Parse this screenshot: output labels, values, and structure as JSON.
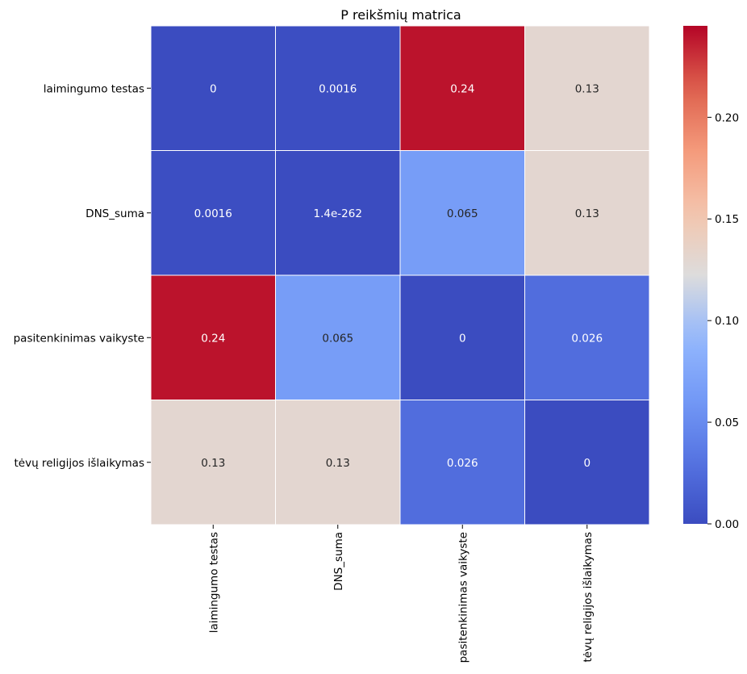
{
  "chart_data": {
    "type": "heatmap",
    "title": "P reikšmių matrica",
    "xlabel": "",
    "ylabel": "",
    "x_categories": [
      "laimingumo testas",
      "DNS_suma",
      "pasitenkinimas vaikyste",
      "tėvų religijos išlaikymas"
    ],
    "y_categories": [
      "laimingumo testas",
      "DNS_suma",
      "pasitenkinimas vaikyste",
      "tėvų religijos išlaikymas"
    ],
    "values": [
      [
        0,
        0.0016,
        0.24,
        0.13
      ],
      [
        0.0016,
        1.4e-262,
        0.065,
        0.13
      ],
      [
        0.24,
        0.065,
        0,
        0.026
      ],
      [
        0.13,
        0.13,
        0.026,
        0
      ]
    ],
    "cell_labels": [
      [
        "0",
        "0.0016",
        "0.24",
        "0.13"
      ],
      [
        "0.0016",
        "1.4e-262",
        "0.065",
        "0.13"
      ],
      [
        "0.24",
        "0.065",
        "0",
        "0.026"
      ],
      [
        "0.13",
        "0.13",
        "0.026",
        "0"
      ]
    ],
    "colormap": "coolwarm",
    "vmin": 0,
    "vmax": 0.245,
    "colorbar_ticks": [
      0.0,
      0.05,
      0.1,
      0.15,
      0.2
    ],
    "colorbar_tick_labels": [
      "0.00",
      "0.05",
      "0.10",
      "0.15",
      "0.20"
    ],
    "grid_lines": true,
    "grid_color": "#ffffff"
  }
}
